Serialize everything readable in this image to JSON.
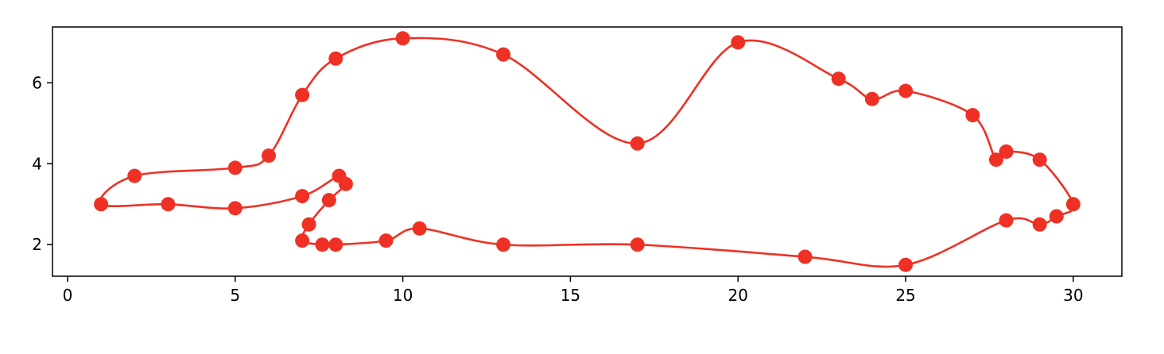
{
  "chart_data": {
    "type": "line",
    "title": "",
    "xlabel": "",
    "ylabel": "",
    "xlim": [
      -0.45,
      31.45
    ],
    "ylim": [
      1.22,
      7.38
    ],
    "x_ticks": [
      0,
      5,
      10,
      15,
      20,
      25,
      30
    ],
    "x_tick_labels": [
      "0",
      "5",
      "10",
      "15",
      "20",
      "25",
      "30"
    ],
    "y_ticks": [
      2,
      4,
      6
    ],
    "y_tick_labels": [
      "2",
      "4",
      "6"
    ],
    "grid": false,
    "legend": "none",
    "color": "#ee3124",
    "series": [
      {
        "smooth": true,
        "closed": true,
        "points": [
          [
            1,
            3.0
          ],
          [
            2,
            3.7
          ],
          [
            5,
            3.9
          ],
          [
            6,
            4.2
          ],
          [
            7,
            5.7
          ],
          [
            8,
            6.6
          ],
          [
            10,
            7.1
          ],
          [
            13,
            6.7
          ],
          [
            17,
            4.5
          ],
          [
            20,
            7.0
          ],
          [
            23,
            6.1
          ],
          [
            24,
            5.6
          ],
          [
            25,
            5.8
          ],
          [
            27,
            5.2
          ],
          [
            27.7,
            4.1
          ],
          [
            28,
            4.3
          ],
          [
            29,
            4.1
          ],
          [
            30,
            3.0
          ],
          [
            29.5,
            2.7
          ],
          [
            29,
            2.5
          ],
          [
            28,
            2.6
          ],
          [
            25,
            1.5
          ],
          [
            22,
            1.7
          ],
          [
            17,
            2.0
          ],
          [
            13,
            2.0
          ],
          [
            10.5,
            2.4
          ],
          [
            9.5,
            2.1
          ],
          [
            8,
            2.0
          ],
          [
            7.6,
            2.0
          ],
          [
            7,
            2.1
          ],
          [
            7.2,
            2.5
          ],
          [
            7.8,
            3.1
          ],
          [
            8.3,
            3.5
          ],
          [
            8.1,
            3.7
          ],
          [
            7,
            3.2
          ],
          [
            5,
            2.9
          ],
          [
            3,
            3.0
          ]
        ]
      }
    ]
  }
}
